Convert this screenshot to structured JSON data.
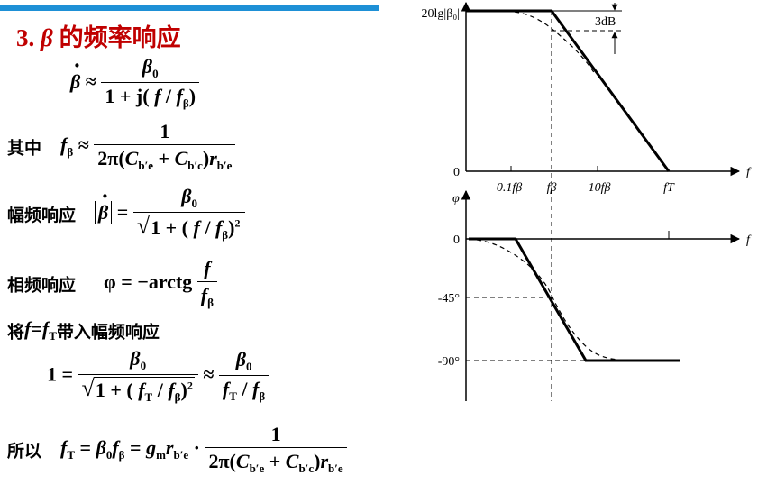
{
  "header": {
    "number": "3.",
    "symbol": "β",
    "title": "的频率响应"
  },
  "labels": {
    "qizhong": "其中",
    "amplitude": "幅频响应",
    "phase": "相频响应",
    "substitute_cn1": "将",
    "substitute_eq": "f=f",
    "substitute_sub": "T",
    "substitute_cn2": "带入幅频响应",
    "suoyi": "所以"
  },
  "graph": {
    "y_label_top": "20lg|β₀|",
    "zero_top": "0",
    "annotation": "3dB",
    "x_axis_label": "f",
    "x_ticks": [
      "0.1fβ",
      "fβ",
      "10fβ",
      "fT"
    ],
    "phi_label": "φ",
    "phase_ticks": [
      "0",
      "-45°",
      "-90°"
    ]
  }
}
